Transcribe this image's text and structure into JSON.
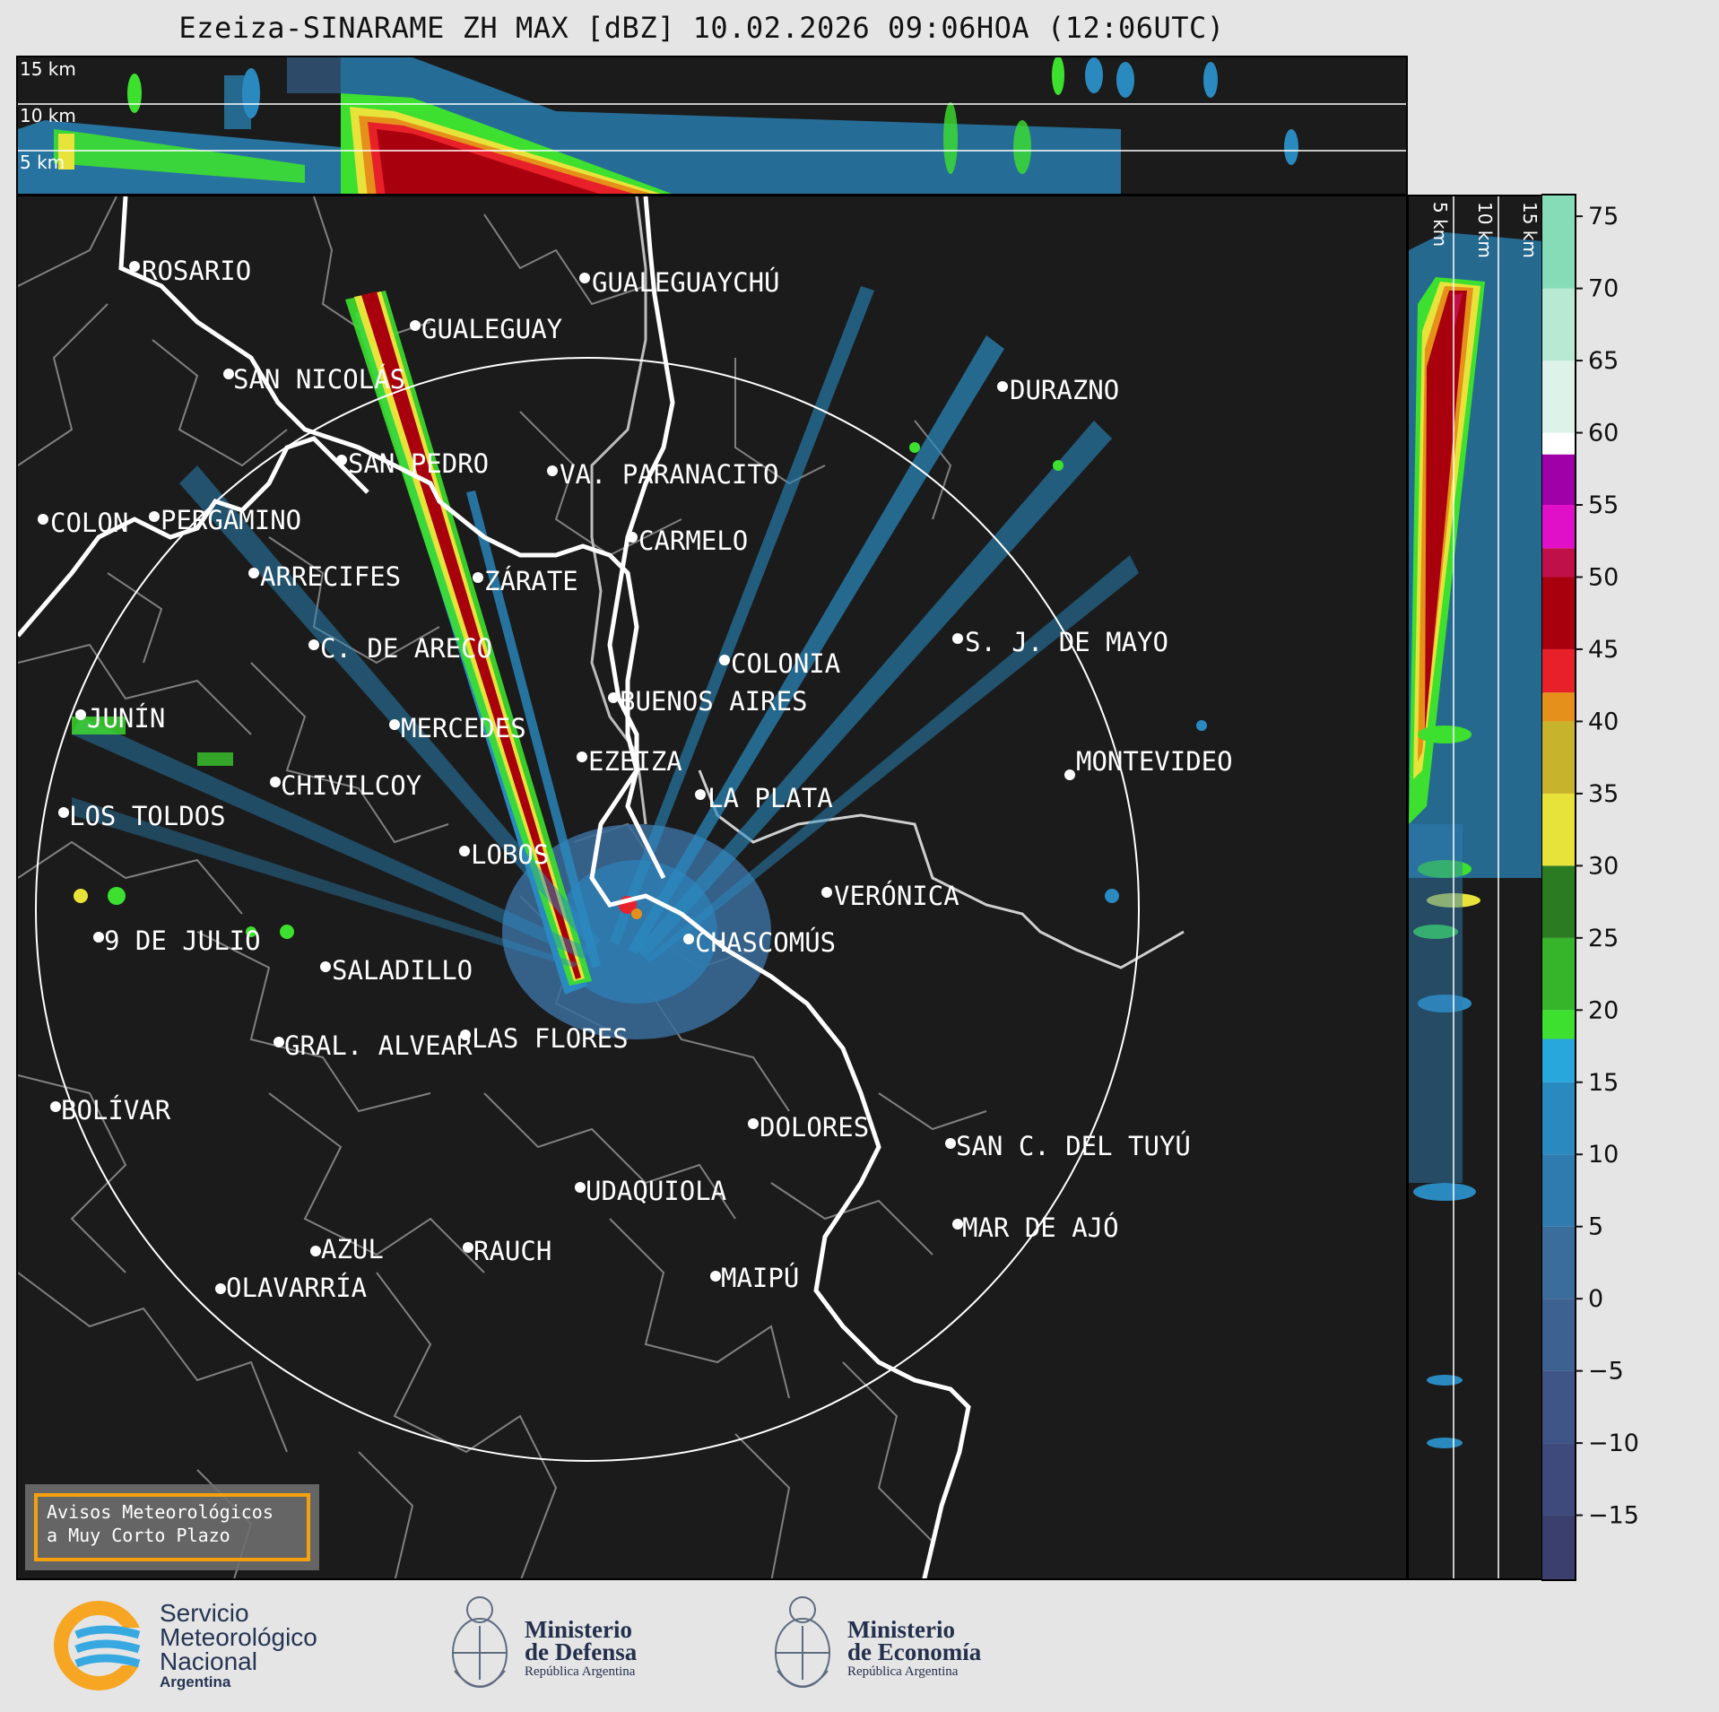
{
  "title": "Ezeiza-SINARAME ZH MAX [dBZ] 10.02.2026 09:06HOA (12:06UTC)",
  "top_panel": {
    "km_labels": [
      "15 km",
      "10 km",
      "5 km"
    ]
  },
  "side_panel": {
    "km_labels": [
      "5 km",
      "10 km",
      "15 km"
    ]
  },
  "colorbar": {
    "unit": "dBZ",
    "ticks": [
      75,
      70,
      65,
      60,
      55,
      50,
      45,
      40,
      35,
      30,
      25,
      20,
      15,
      10,
      5,
      0,
      -5,
      -10,
      -15
    ],
    "tick_labels": [
      "75",
      "70",
      "65",
      "60",
      "55",
      "50",
      "45",
      "40",
      "35",
      "30",
      "25",
      "20",
      "15",
      "10",
      "5",
      "0",
      "−5",
      "−10",
      "−15"
    ],
    "range": [
      -19.5,
      76.5
    ],
    "segments": [
      {
        "from": -19.5,
        "to": -15,
        "color": "#3a3f6e"
      },
      {
        "from": -15,
        "to": -10,
        "color": "#3e4a7b"
      },
      {
        "from": -10,
        "to": -5,
        "color": "#3f5587"
      },
      {
        "from": -5,
        "to": 0,
        "color": "#3d6190"
      },
      {
        "from": 0,
        "to": 5,
        "color": "#3a6d9c"
      },
      {
        "from": 5,
        "to": 10,
        "color": "#2f7bb0"
      },
      {
        "from": 10,
        "to": 15,
        "color": "#2a8ac0"
      },
      {
        "from": 15,
        "to": 18,
        "color": "#27a7dc"
      },
      {
        "from": 18,
        "to": 20,
        "color": "#3de02f"
      },
      {
        "from": 20,
        "to": 25,
        "color": "#36b52b"
      },
      {
        "from": 25,
        "to": 30,
        "color": "#2a7b22"
      },
      {
        "from": 30,
        "to": 35,
        "color": "#e8e33a"
      },
      {
        "from": 35,
        "to": 40,
        "color": "#c8b42c"
      },
      {
        "from": 40,
        "to": 42,
        "color": "#e5901a"
      },
      {
        "from": 42,
        "to": 45,
        "color": "#e8202a"
      },
      {
        "from": 45,
        "to": 50,
        "color": "#a9000e"
      },
      {
        "from": 50,
        "to": 52,
        "color": "#c0104a"
      },
      {
        "from": 52,
        "to": 55,
        "color": "#e010c8"
      },
      {
        "from": 55,
        "to": 58.5,
        "color": "#a000a8"
      },
      {
        "from": 58.5,
        "to": 60,
        "color": "#ffffff"
      },
      {
        "from": 60,
        "to": 65,
        "color": "#ddf2e8"
      },
      {
        "from": 65,
        "to": 70,
        "color": "#b8ead3"
      },
      {
        "from": 70,
        "to": 76.5,
        "color": "#86dcb6"
      }
    ]
  },
  "cities": [
    {
      "name": "ROSARIO"
    },
    {
      "name": "GUALEGUAYCHÚ"
    },
    {
      "name": "GUALEGUAY"
    },
    {
      "name": "SAN NICOLÁS"
    },
    {
      "name": "DURAZNO"
    },
    {
      "name": "SAN PEDRO"
    },
    {
      "name": "VA. PARANACITO"
    },
    {
      "name": "COLON"
    },
    {
      "name": "PERGAMINO"
    },
    {
      "name": "CARMELO"
    },
    {
      "name": "ARRECIFES"
    },
    {
      "name": "ZÁRATE"
    },
    {
      "name": "S. J. DE MAYO"
    },
    {
      "name": "C. DE ARECO"
    },
    {
      "name": "COLONIA"
    },
    {
      "name": "BUENOS AIRES"
    },
    {
      "name": "JUNÍN"
    },
    {
      "name": "MERCEDES"
    },
    {
      "name": "EZEIZA"
    },
    {
      "name": "MONTEVIDEO"
    },
    {
      "name": "CHIVILCOY"
    },
    {
      "name": "LA PLATA"
    },
    {
      "name": "LOS TOLDOS"
    },
    {
      "name": "LOBOS"
    },
    {
      "name": "VERÓNICA"
    },
    {
      "name": "9 DE JULIO"
    },
    {
      "name": "CHASCOMÚS"
    },
    {
      "name": "SALADILLO"
    },
    {
      "name": "GRAL. ALVEAR"
    },
    {
      "name": "LAS FLORES"
    },
    {
      "name": "BOLÍVAR"
    },
    {
      "name": "DOLORES"
    },
    {
      "name": "SAN C. DEL TUYÚ"
    },
    {
      "name": "UDAQUIOLA"
    },
    {
      "name": "MAR DE AJÓ"
    },
    {
      "name": "AZUL"
    },
    {
      "name": "RAUCH"
    },
    {
      "name": "OLAVARRÍA"
    },
    {
      "name": "MAIPÚ"
    }
  ],
  "aviso": {
    "text": "Avisos Meteorológicos\na Muy Corto Plazo"
  },
  "logos": {
    "smn": {
      "line1": "Servicio",
      "line2": "Meteorológico",
      "line3": "Nacional",
      "line4": "Argentina",
      "colors": [
        "#f6a623",
        "#38a9e0"
      ]
    },
    "defensa": {
      "line1": "Ministerio",
      "line2": "de Defensa",
      "line3": "República Argentina"
    },
    "economia": {
      "line1": "Ministerio",
      "line2": "de Economía",
      "line3": "República Argentina"
    }
  }
}
